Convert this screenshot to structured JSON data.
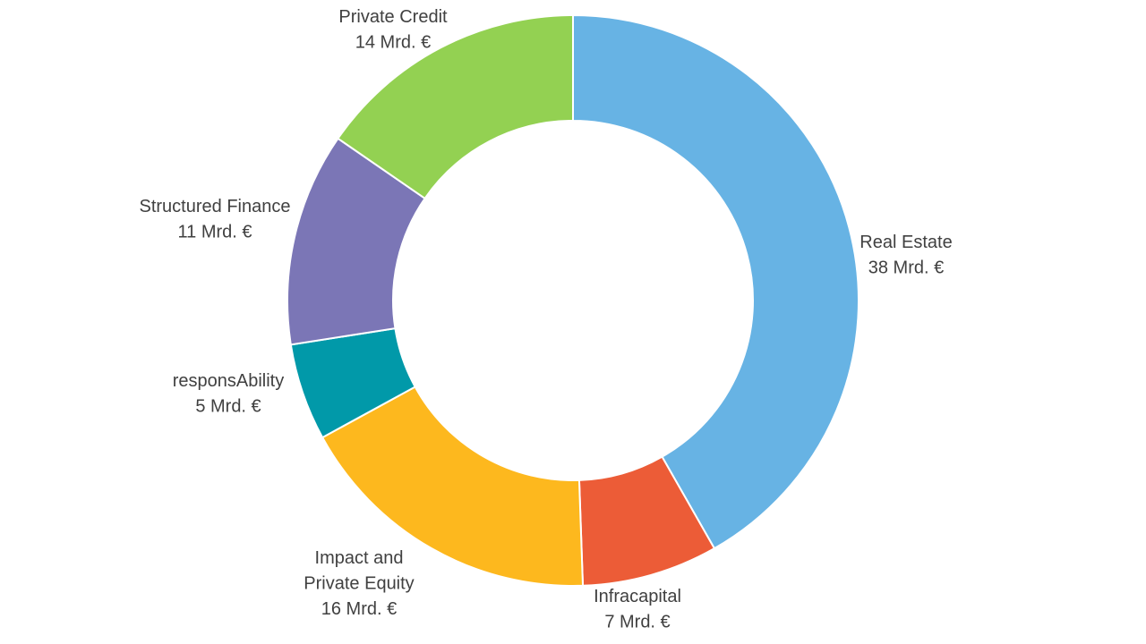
{
  "chart_data": {
    "type": "pie",
    "variant": "donut",
    "unit": "Mrd. €",
    "slices": [
      {
        "name": "Real Estate",
        "value": 38,
        "value_label": "38 Mrd. €",
        "color": "#67B3E4"
      },
      {
        "name": "Infracapital",
        "value": 7,
        "value_label": "7 Mrd. €",
        "color": "#EC5C37"
      },
      {
        "name": "Impact and Private Equity",
        "name_lines": [
          "Impact and",
          "Private Equity"
        ],
        "value": 16,
        "value_label": "16 Mrd. €",
        "color": "#FDB81E"
      },
      {
        "name": "responsAbility",
        "value": 5,
        "value_label": "5 Mrd. €",
        "color": "#0199A9"
      },
      {
        "name": "Structured Finance",
        "value": 11,
        "value_label": "11 Mrd. €",
        "color": "#7B76B6"
      },
      {
        "name": "Private Credit",
        "value": 14,
        "value_label": "14 Mrd. €",
        "color": "#93D152"
      }
    ]
  }
}
